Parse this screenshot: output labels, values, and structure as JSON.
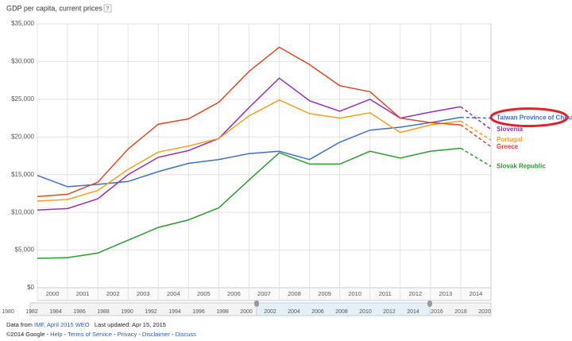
{
  "chart_data": {
    "type": "line",
    "title": "GDP per capita, current prices",
    "help_icon": "?",
    "x": [
      2000,
      2001,
      2002,
      2003,
      2004,
      2005,
      2006,
      2007,
      2008,
      2009,
      2010,
      2011,
      2012,
      2013,
      2014,
      2015
    ],
    "xlim": [
      2000,
      2015
    ],
    "xticks": [
      2000,
      2001,
      2002,
      2003,
      2004,
      2005,
      2006,
      2007,
      2008,
      2009,
      2010,
      2011,
      2012,
      2013,
      2014
    ],
    "dashed_from": 2014,
    "ylim": [
      0,
      35000
    ],
    "yticks": [
      {
        "value": 0,
        "label": "$0"
      },
      {
        "value": 5000,
        "label": "$5,000"
      },
      {
        "value": 10000,
        "label": "$10,000"
      },
      {
        "value": 15000,
        "label": "$15,000"
      },
      {
        "value": 20000,
        "label": "$20,000"
      },
      {
        "value": 25000,
        "label": "$25,000"
      },
      {
        "value": 30000,
        "label": "$30,000"
      },
      {
        "value": 35000,
        "label": "$35,000"
      }
    ],
    "grid": true,
    "highlight": "Taiwan Province of China",
    "series": [
      {
        "name": "Taiwan Province of China",
        "color": "#3d6fcc",
        "values": [
          14900,
          13400,
          13700,
          14100,
          15400,
          16500,
          17000,
          17800,
          18100,
          17000,
          19300,
          20900,
          21300,
          21900,
          22600,
          22500
        ]
      },
      {
        "name": "Slovenia",
        "color": "#9a2fb0",
        "values": [
          10300,
          10500,
          11800,
          15000,
          17300,
          18200,
          19800,
          23900,
          27800,
          24800,
          23400,
          25000,
          22500,
          23300,
          24000,
          21000
        ]
      },
      {
        "name": "Portugal",
        "color": "#f5a01a",
        "values": [
          11500,
          11700,
          12900,
          15700,
          18000,
          18800,
          19800,
          22800,
          24900,
          23100,
          22500,
          23200,
          20600,
          21600,
          22100,
          19600
        ]
      },
      {
        "name": "Greece",
        "color": "#dc4a26",
        "values": [
          12100,
          12400,
          14000,
          18400,
          21700,
          22400,
          24600,
          28700,
          31900,
          29600,
          26800,
          26000,
          22500,
          21900,
          21600,
          18700
        ]
      },
      {
        "name": "Slovak Republic",
        "color": "#2e9a2e",
        "values": [
          3900,
          4000,
          4600,
          6300,
          8000,
          9000,
          10600,
          14300,
          17900,
          16400,
          16400,
          18100,
          17200,
          18100,
          18500,
          16100
        ]
      }
    ]
  },
  "timeline": {
    "labels": [
      "1980",
      "1982",
      "1984",
      "1986",
      "1988",
      "1990",
      "1992",
      "1994",
      "1996",
      "1998",
      "2000",
      "2002",
      "2004",
      "2006",
      "2008",
      "2010",
      "2012",
      "2014",
      "2016",
      "2018",
      "2020"
    ]
  },
  "footer": {
    "data_from": "Data from",
    "source_link": "IMF, April 2015 WEO",
    "updated": "Last updated: Apr 15, 2015",
    "copyright": "©2014 Google",
    "links": [
      "Help",
      "Terms of Service",
      "Privacy",
      "Disclaimer",
      "Discuss"
    ]
  }
}
